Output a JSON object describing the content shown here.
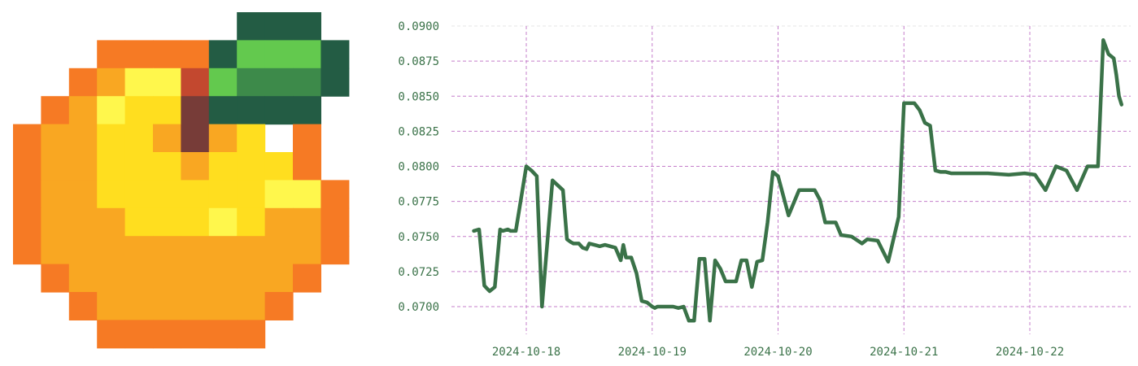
{
  "logo": {
    "name": "pixel-peach-icon",
    "palette": {
      "o": "#f67a24",
      "a": "#f9a722",
      "y": "#ffde1f",
      "l": "#fff74c",
      "r": "#c3482f",
      "b": "#773c38",
      "d": "#235c44",
      "g": "#63c94e",
      "m": "#3d8a4a"
    },
    "rows": [
      "........ddd.",
      "...oooodgggd",
      "..oallrgmmmd",
      ".oalyybdddd.",
      "oaayyabay.o.",
      "oaayyyayyyo.",
      "oaayyyyyyllo",
      "oaaayyylyaao",
      "oaaaaaaaaaao",
      ".oaaaaaaaao.",
      "..oaaaaaao..",
      "...oooooo..."
    ]
  },
  "chart_data": {
    "type": "line",
    "title": "",
    "xlabel": "",
    "ylabel": "",
    "ylim": [
      0.069,
      0.09
    ],
    "xlim": [
      "2024-10-17 04:00",
      "2024-10-22 18:00"
    ],
    "grid": true,
    "colors": {
      "line": "#3a7248",
      "grid": "#c57fcb",
      "grid_top": "#e6e6e6",
      "tick_text": "#3a7248"
    },
    "yticks": [
      0.07,
      0.0725,
      0.075,
      0.0775,
      0.08,
      0.0825,
      0.085,
      0.0875,
      0.09
    ],
    "ytick_labels": [
      "0.0700",
      "0.0725",
      "0.0750",
      "0.0775",
      "0.0800",
      "0.0825",
      "0.0850",
      "0.0875",
      "0.0900"
    ],
    "xticks": [
      "2024-10-18",
      "2024-10-19",
      "2024-10-20",
      "2024-10-21",
      "2024-10-22"
    ],
    "xtick_labels": [
      "2024-10-18",
      "2024-10-19",
      "2024-10-20",
      "2024-10-21",
      "2024-10-22"
    ],
    "series": [
      {
        "x": [
          "2024-10-17 14:00",
          "2024-10-17 15:00",
          "2024-10-17 16:00",
          "2024-10-17 16:15",
          "2024-10-17 17:00",
          "2024-10-17 18:00",
          "2024-10-17 19:00",
          "2024-10-17 19:30",
          "2024-10-17 20:30",
          "2024-10-17 21:00",
          "2024-10-17 22:00",
          "2024-10-18 00:00",
          "2024-10-18 01:00",
          "2024-10-18 02:00",
          "2024-10-18 03:00",
          "2024-10-18 05:00",
          "2024-10-18 07:00",
          "2024-10-18 07:45",
          "2024-10-18 08:30",
          "2024-10-18 09:00",
          "2024-10-18 10:00",
          "2024-10-18 10:45",
          "2024-10-18 11:30",
          "2024-10-18 12:00",
          "2024-10-18 13:00",
          "2024-10-18 14:00",
          "2024-10-18 15:00",
          "2024-10-18 16:00",
          "2024-10-18 17:00",
          "2024-10-18 18:00",
          "2024-10-18 18:30",
          "2024-10-18 19:00",
          "2024-10-18 20:00",
          "2024-10-18 21:00",
          "2024-10-18 22:00",
          "2024-10-18 23:00",
          "2024-10-19 00:00",
          "2024-10-19 00:30",
          "2024-10-19 01:00",
          "2024-10-19 02:00",
          "2024-10-19 03:00",
          "2024-10-19 04:00",
          "2024-10-19 05:00",
          "2024-10-19 06:00",
          "2024-10-19 07:00",
          "2024-10-19 08:00",
          "2024-10-19 09:00",
          "2024-10-19 10:00",
          "2024-10-19 11:00",
          "2024-10-19 12:00",
          "2024-10-19 13:00",
          "2024-10-19 14:00",
          "2024-10-19 15:00",
          "2024-10-19 16:00",
          "2024-10-19 17:00",
          "2024-10-19 18:00",
          "2024-10-19 19:00",
          "2024-10-19 20:00",
          "2024-10-19 21:00",
          "2024-10-19 22:00",
          "2024-10-19 23:00",
          "2024-10-20 00:00",
          "2024-10-20 02:00",
          "2024-10-20 04:00",
          "2024-10-20 06:00",
          "2024-10-20 07:00",
          "2024-10-20 08:00",
          "2024-10-20 09:00",
          "2024-10-20 10:00",
          "2024-10-20 11:00",
          "2024-10-20 12:00",
          "2024-10-20 14:00",
          "2024-10-20 16:00",
          "2024-10-20 17:00",
          "2024-10-20 19:00",
          "2024-10-20 21:00",
          "2024-10-20 23:00",
          "2024-10-21 00:00",
          "2024-10-21 01:00",
          "2024-10-21 02:00",
          "2024-10-21 03:00",
          "2024-10-21 04:00",
          "2024-10-21 05:00",
          "2024-10-21 06:00",
          "2024-10-21 07:00",
          "2024-10-21 08:00",
          "2024-10-21 09:00",
          "2024-10-21 10:00",
          "2024-10-21 12:00",
          "2024-10-21 16:00",
          "2024-10-21 20:00",
          "2024-10-21 23:00",
          "2024-10-22 01:00",
          "2024-10-22 03:00",
          "2024-10-22 05:00",
          "2024-10-22 07:00",
          "2024-10-22 09:00",
          "2024-10-22 11:00",
          "2024-10-22 13:00",
          "2024-10-22 14:00",
          "2024-10-22 15:00",
          "2024-10-22 16:00",
          "2024-10-22 16:30",
          "2024-10-22 17:00",
          "2024-10-22 17:30"
        ],
        "y": [
          0.0754,
          0.0755,
          0.0715,
          0.0714,
          0.0711,
          0.0714,
          0.0755,
          0.0754,
          0.0755,
          0.0754,
          0.0754,
          0.08,
          0.0797,
          0.0793,
          0.07,
          0.079,
          0.0783,
          0.0748,
          0.0746,
          0.0745,
          0.0745,
          0.0742,
          0.0741,
          0.0745,
          0.0744,
          0.0743,
          0.0744,
          0.0743,
          0.0742,
          0.0733,
          0.0744,
          0.0735,
          0.0735,
          0.0724,
          0.0704,
          0.0703,
          0.07,
          0.0699,
          0.07,
          0.07,
          0.07,
          0.07,
          0.0699,
          0.07,
          0.069,
          0.069,
          0.0734,
          0.0734,
          0.069,
          0.0733,
          0.0727,
          0.0718,
          0.0718,
          0.0718,
          0.0733,
          0.0733,
          0.0714,
          0.0732,
          0.0733,
          0.076,
          0.0796,
          0.0793,
          0.0765,
          0.0783,
          0.0783,
          0.0783,
          0.0776,
          0.076,
          0.076,
          0.076,
          0.0751,
          0.075,
          0.0745,
          0.0748,
          0.0747,
          0.0732,
          0.0764,
          0.0845,
          0.0845,
          0.0845,
          0.084,
          0.0831,
          0.0829,
          0.0797,
          0.0796,
          0.0796,
          0.0795,
          0.0795,
          0.0795,
          0.0795,
          0.0794,
          0.0795,
          0.0794,
          0.0783,
          0.08,
          0.0797,
          0.0783,
          0.08,
          0.08,
          0.089,
          0.088,
          0.0877,
          0.0865,
          0.085,
          0.0844
        ]
      }
    ]
  }
}
